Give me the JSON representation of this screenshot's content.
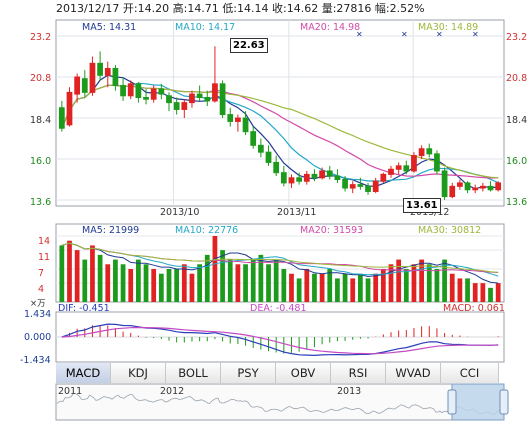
{
  "header": {
    "date": "2013/12/17",
    "open": "开:14.20",
    "high": "高:14.71",
    "low": "低:14.14",
    "close": "收:14.62",
    "volume": "量:27816",
    "change": "幅:2.52%"
  },
  "price_panel": {
    "ma5": "MA5: 14.31",
    "ma10": "MA10: 14.17",
    "ma20": "MA20: 14.98",
    "ma30": "MA30: 14.89",
    "y_ticks": [
      "23.2",
      "20.8",
      "18.4",
      "16.0",
      "13.6"
    ],
    "x_ticks": [
      "2013/10",
      "2013/11",
      "2013/12"
    ],
    "high_marker": "22.63",
    "low_marker": "13.61"
  },
  "volume_panel": {
    "ma5": "MA5: 21999",
    "ma10": "MA10: 22776",
    "ma20": "MA20: 31593",
    "ma30": "MA30: 30812",
    "y_ticks": [
      "14",
      "11",
      "7",
      "4",
      "×万"
    ]
  },
  "macd_panel": {
    "dif": "DIF: -0.451",
    "dea": "DEA: -0.481",
    "macd": "MACD: 0.061",
    "y_ticks": [
      "1.434",
      "0.000",
      "-1.434"
    ]
  },
  "tabs": [
    "MACD",
    "KDJ",
    "BOLL",
    "PSY",
    "OBV",
    "RSI",
    "WVAD",
    "CCI"
  ],
  "overview": {
    "years": [
      "2011",
      "2012",
      "2013"
    ]
  },
  "colors": {
    "up": "#e02222",
    "down": "#1c9a1c",
    "ma5": "#1f3a93",
    "ma10": "#24a8c8",
    "ma20": "#d04aa8",
    "ma30": "#9cb83a",
    "dif": "#2a3fb8",
    "dea": "#c44ac4"
  },
  "chart_data": {
    "type": "candlestick",
    "candles": [
      {
        "o": 19.0,
        "h": 19.4,
        "l": 17.6,
        "c": 17.8
      },
      {
        "o": 18.0,
        "h": 20.2,
        "l": 17.9,
        "c": 19.9
      },
      {
        "o": 19.8,
        "h": 21.0,
        "l": 19.3,
        "c": 20.8
      },
      {
        "o": 20.7,
        "h": 21.2,
        "l": 19.6,
        "c": 19.9
      },
      {
        "o": 19.9,
        "h": 22.0,
        "l": 19.7,
        "c": 21.6
      },
      {
        "o": 21.6,
        "h": 22.3,
        "l": 20.6,
        "c": 20.9
      },
      {
        "o": 20.9,
        "h": 21.7,
        "l": 20.2,
        "c": 21.3
      },
      {
        "o": 21.3,
        "h": 21.5,
        "l": 20.0,
        "c": 20.3
      },
      {
        "o": 20.3,
        "h": 20.8,
        "l": 19.4,
        "c": 19.7
      },
      {
        "o": 19.7,
        "h": 20.6,
        "l": 19.5,
        "c": 20.4
      },
      {
        "o": 20.4,
        "h": 20.5,
        "l": 19.3,
        "c": 19.6
      },
      {
        "o": 19.6,
        "h": 20.1,
        "l": 19.2,
        "c": 19.5
      },
      {
        "o": 19.5,
        "h": 20.3,
        "l": 19.3,
        "c": 20.1
      },
      {
        "o": 20.1,
        "h": 20.4,
        "l": 19.5,
        "c": 19.8
      },
      {
        "o": 19.7,
        "h": 19.9,
        "l": 18.8,
        "c": 19.3
      },
      {
        "o": 19.3,
        "h": 19.6,
        "l": 18.6,
        "c": 18.9
      },
      {
        "o": 18.9,
        "h": 19.5,
        "l": 18.4,
        "c": 19.3
      },
      {
        "o": 19.3,
        "h": 20.0,
        "l": 19.0,
        "c": 19.8
      },
      {
        "o": 19.8,
        "h": 20.3,
        "l": 19.4,
        "c": 19.6
      },
      {
        "o": 19.6,
        "h": 20.0,
        "l": 19.1,
        "c": 19.4
      },
      {
        "o": 19.4,
        "h": 22.6,
        "l": 19.3,
        "c": 20.4
      },
      {
        "o": 20.4,
        "h": 20.6,
        "l": 18.4,
        "c": 18.6
      },
      {
        "o": 18.6,
        "h": 19.0,
        "l": 17.9,
        "c": 18.2
      },
      {
        "o": 18.2,
        "h": 18.6,
        "l": 17.6,
        "c": 18.4
      },
      {
        "o": 18.4,
        "h": 18.8,
        "l": 17.4,
        "c": 17.6
      },
      {
        "o": 17.6,
        "h": 17.9,
        "l": 16.6,
        "c": 16.8
      },
      {
        "o": 16.8,
        "h": 17.2,
        "l": 16.1,
        "c": 16.4
      },
      {
        "o": 16.4,
        "h": 16.8,
        "l": 15.6,
        "c": 15.8
      },
      {
        "o": 15.8,
        "h": 16.2,
        "l": 15.0,
        "c": 15.2
      },
      {
        "o": 15.2,
        "h": 15.6,
        "l": 14.4,
        "c": 14.6
      },
      {
        "o": 14.6,
        "h": 15.1,
        "l": 14.3,
        "c": 14.9
      },
      {
        "o": 14.9,
        "h": 15.2,
        "l": 14.5,
        "c": 14.7
      },
      {
        "o": 14.7,
        "h": 15.3,
        "l": 14.5,
        "c": 15.1
      },
      {
        "o": 15.1,
        "h": 15.4,
        "l": 14.7,
        "c": 14.9
      },
      {
        "o": 14.9,
        "h": 15.5,
        "l": 14.8,
        "c": 15.3
      },
      {
        "o": 15.3,
        "h": 15.6,
        "l": 14.8,
        "c": 15.0
      },
      {
        "o": 15.0,
        "h": 15.4,
        "l": 14.6,
        "c": 14.8
      },
      {
        "o": 14.8,
        "h": 15.0,
        "l": 14.1,
        "c": 14.3
      },
      {
        "o": 14.3,
        "h": 14.7,
        "l": 14.0,
        "c": 14.5
      },
      {
        "o": 14.5,
        "h": 14.9,
        "l": 14.2,
        "c": 14.4
      },
      {
        "o": 14.4,
        "h": 14.6,
        "l": 13.9,
        "c": 14.1
      },
      {
        "o": 14.1,
        "h": 14.9,
        "l": 14.0,
        "c": 14.7
      },
      {
        "o": 14.7,
        "h": 15.2,
        "l": 14.6,
        "c": 15.1
      },
      {
        "o": 15.1,
        "h": 15.6,
        "l": 14.9,
        "c": 15.4
      },
      {
        "o": 15.4,
        "h": 15.8,
        "l": 15.1,
        "c": 15.6
      },
      {
        "o": 15.6,
        "h": 15.9,
        "l": 15.1,
        "c": 15.3
      },
      {
        "o": 15.3,
        "h": 16.4,
        "l": 15.2,
        "c": 16.2
      },
      {
        "o": 16.2,
        "h": 16.8,
        "l": 16.0,
        "c": 16.6
      },
      {
        "o": 16.6,
        "h": 16.9,
        "l": 16.1,
        "c": 16.3
      },
      {
        "o": 16.3,
        "h": 16.5,
        "l": 15.1,
        "c": 15.3
      },
      {
        "o": 15.3,
        "h": 15.5,
        "l": 13.6,
        "c": 13.8
      },
      {
        "o": 13.8,
        "h": 14.6,
        "l": 13.7,
        "c": 14.4
      },
      {
        "o": 14.4,
        "h": 14.8,
        "l": 14.2,
        "c": 14.6
      },
      {
        "o": 14.6,
        "h": 14.7,
        "l": 14.0,
        "c": 14.2
      },
      {
        "o": 14.2,
        "h": 14.5,
        "l": 14.0,
        "c": 14.3
      },
      {
        "o": 14.3,
        "h": 14.6,
        "l": 14.1,
        "c": 14.4
      },
      {
        "o": 14.4,
        "h": 14.7,
        "l": 14.1,
        "c": 14.2
      },
      {
        "o": 14.2,
        "h": 14.7,
        "l": 14.1,
        "c": 14.6
      }
    ],
    "volume": [
      12,
      13,
      11,
      9,
      12,
      10,
      8,
      9,
      8,
      7,
      9,
      8,
      7,
      6,
      7,
      7,
      8,
      6,
      8,
      10,
      14,
      11,
      9,
      8,
      8,
      9,
      10,
      8,
      9,
      7,
      6,
      5,
      7,
      6,
      6,
      7,
      5,
      6,
      5,
      6,
      5,
      6,
      7,
      8,
      9,
      7,
      8,
      9,
      8,
      7,
      9,
      6,
      5,
      5,
      4,
      4,
      3,
      4
    ],
    "y_range": [
      13.6,
      23.2
    ],
    "volume_range": [
      0,
      14
    ],
    "macd_range": [
      -1.434,
      1.434
    ]
  }
}
